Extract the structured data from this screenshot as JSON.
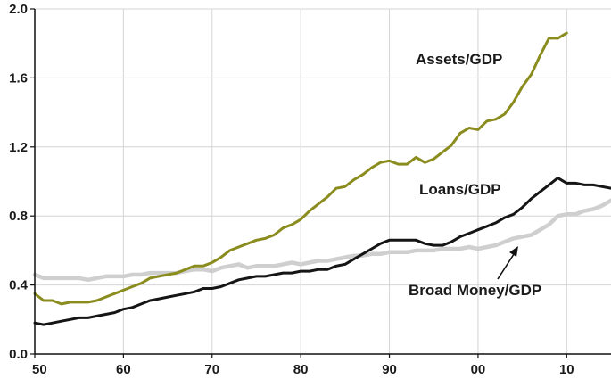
{
  "chart_data": {
    "type": "line",
    "xlim": [
      1950,
      2015
    ],
    "ylim": [
      0.0,
      2.0
    ],
    "grid": true,
    "x_ticks": [
      1950,
      1960,
      1970,
      1980,
      1990,
      2000,
      2010
    ],
    "x_tick_labels": [
      "50",
      "60",
      "70",
      "80",
      "90",
      "00",
      "10"
    ],
    "y_ticks": [
      0.0,
      0.4,
      0.8,
      1.2,
      1.6,
      2.0
    ],
    "y_tick_labels": [
      "0.0",
      "0.4",
      "0.8",
      "1.2",
      "1.6",
      "2.0"
    ],
    "series": [
      {
        "name": "Assets/GDP",
        "color": "#8b8c1e",
        "x": [
          1950,
          1951,
          1952,
          1953,
          1954,
          1955,
          1956,
          1957,
          1958,
          1959,
          1960,
          1961,
          1962,
          1963,
          1964,
          1965,
          1966,
          1967,
          1968,
          1969,
          1970,
          1971,
          1972,
          1973,
          1974,
          1975,
          1976,
          1977,
          1978,
          1979,
          1980,
          1981,
          1982,
          1983,
          1984,
          1985,
          1986,
          1987,
          1988,
          1989,
          1990,
          1991,
          1992,
          1993,
          1994,
          1995,
          1996,
          1997,
          1998,
          1999,
          2000,
          2001,
          2002,
          2003,
          2004,
          2005,
          2006,
          2007,
          2008,
          2009,
          2010
        ],
        "values": [
          0.35,
          0.31,
          0.31,
          0.29,
          0.3,
          0.3,
          0.3,
          0.31,
          0.33,
          0.35,
          0.37,
          0.39,
          0.41,
          0.44,
          0.45,
          0.46,
          0.47,
          0.49,
          0.51,
          0.51,
          0.53,
          0.56,
          0.6,
          0.62,
          0.64,
          0.66,
          0.67,
          0.69,
          0.73,
          0.75,
          0.78,
          0.83,
          0.87,
          0.91,
          0.96,
          0.97,
          1.01,
          1.04,
          1.08,
          1.11,
          1.12,
          1.1,
          1.1,
          1.14,
          1.11,
          1.13,
          1.17,
          1.21,
          1.28,
          1.31,
          1.3,
          1.35,
          1.36,
          1.39,
          1.46,
          1.55,
          1.62,
          1.73,
          1.83,
          1.83,
          1.86
        ]
      },
      {
        "name": "Loans/GDP",
        "color": "#151515",
        "x": [
          1950,
          1951,
          1952,
          1953,
          1954,
          1955,
          1956,
          1957,
          1958,
          1959,
          1960,
          1961,
          1962,
          1963,
          1964,
          1965,
          1966,
          1967,
          1968,
          1969,
          1970,
          1971,
          1972,
          1973,
          1974,
          1975,
          1976,
          1977,
          1978,
          1979,
          1980,
          1981,
          1982,
          1983,
          1984,
          1985,
          1986,
          1987,
          1988,
          1989,
          1990,
          1991,
          1992,
          1993,
          1994,
          1995,
          1996,
          1997,
          1998,
          1999,
          2000,
          2001,
          2002,
          2003,
          2004,
          2005,
          2006,
          2007,
          2008,
          2009,
          2010,
          2011,
          2012,
          2013,
          2014,
          2015
        ],
        "values": [
          0.18,
          0.17,
          0.18,
          0.19,
          0.2,
          0.21,
          0.21,
          0.22,
          0.23,
          0.24,
          0.26,
          0.27,
          0.29,
          0.31,
          0.32,
          0.33,
          0.34,
          0.35,
          0.36,
          0.38,
          0.38,
          0.39,
          0.41,
          0.43,
          0.44,
          0.45,
          0.45,
          0.46,
          0.47,
          0.47,
          0.48,
          0.48,
          0.49,
          0.49,
          0.51,
          0.52,
          0.55,
          0.58,
          0.61,
          0.64,
          0.66,
          0.66,
          0.66,
          0.66,
          0.64,
          0.63,
          0.63,
          0.65,
          0.68,
          0.7,
          0.72,
          0.74,
          0.76,
          0.79,
          0.81,
          0.85,
          0.9,
          0.94,
          0.98,
          1.02,
          0.99,
          0.99,
          0.98,
          0.98,
          0.97,
          0.96
        ]
      }
    ]
  },
  "overlay": {
    "series_name": "Broad Money/GDP",
    "label": "Broad Money/GDP",
    "color": "#cfcfcf",
    "x": [
      1950,
      1951,
      1952,
      1953,
      1954,
      1955,
      1956,
      1957,
      1958,
      1959,
      1960,
      1961,
      1962,
      1963,
      1964,
      1965,
      1966,
      1967,
      1968,
      1969,
      1970,
      1971,
      1972,
      1973,
      1974,
      1975,
      1976,
      1977,
      1978,
      1979,
      1980,
      1981,
      1982,
      1983,
      1984,
      1985,
      1986,
      1987,
      1988,
      1989,
      1990,
      1991,
      1992,
      1993,
      1994,
      1995,
      1996,
      1997,
      1998,
      1999,
      2000,
      2001,
      2002,
      2003,
      2004,
      2005,
      2006,
      2007,
      2008,
      2009,
      2010,
      2011,
      2012,
      2013,
      2014,
      2015
    ],
    "values": [
      0.46,
      0.44,
      0.44,
      0.44,
      0.44,
      0.44,
      0.43,
      0.44,
      0.45,
      0.45,
      0.45,
      0.46,
      0.46,
      0.47,
      0.47,
      0.47,
      0.47,
      0.48,
      0.49,
      0.49,
      0.48,
      0.5,
      0.51,
      0.52,
      0.5,
      0.51,
      0.51,
      0.51,
      0.52,
      0.53,
      0.52,
      0.53,
      0.54,
      0.54,
      0.55,
      0.56,
      0.57,
      0.57,
      0.58,
      0.58,
      0.59,
      0.59,
      0.59,
      0.6,
      0.6,
      0.6,
      0.61,
      0.61,
      0.61,
      0.62,
      0.61,
      0.62,
      0.63,
      0.65,
      0.67,
      0.68,
      0.69,
      0.72,
      0.75,
      0.8,
      0.81,
      0.81,
      0.83,
      0.84,
      0.86,
      0.89
    ]
  },
  "labels": {
    "assets": "Assets/GDP",
    "loans": "Loans/GDP",
    "broad_money": "Broad Money/GDP"
  }
}
